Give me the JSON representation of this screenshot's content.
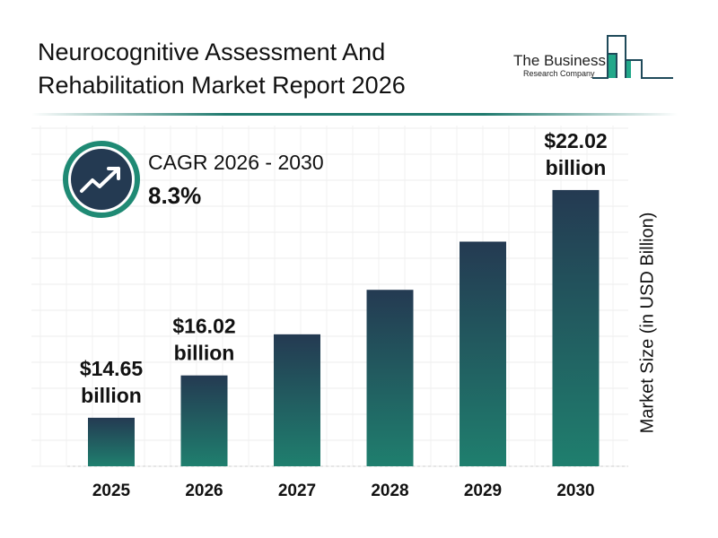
{
  "header": {
    "title_line1": "Neurocognitive Assessment And",
    "title_line2": "Rehabilitation Market Report 2026"
  },
  "logo": {
    "line1": "The Business",
    "line2": "Research Company"
  },
  "cagr": {
    "label": "CAGR 2026 - 2030",
    "value": "8.3%",
    "icon": "trending-up-icon"
  },
  "colors": {
    "bar_top": "#243a52",
    "bar_bottom": "#1f7f6e",
    "accent": "#1f8a74",
    "icon_bg": "#243a52"
  },
  "chart_data": {
    "type": "bar",
    "title": "",
    "xlabel": "",
    "ylabel": "Market Size (in USD Billion)",
    "categories": [
      "2025",
      "2026",
      "2027",
      "2028",
      "2029",
      "2030"
    ],
    "values": [
      14.65,
      16.02,
      17.35,
      18.79,
      20.35,
      22.02
    ],
    "data_labels": [
      {
        "index": 0,
        "line1": "$14.65",
        "line2": "billion"
      },
      {
        "index": 1,
        "line1": "$16.02",
        "line2": "billion"
      },
      {
        "index": 5,
        "line1": "$22.02",
        "line2": "billion"
      }
    ],
    "grid": true,
    "legend": "none"
  }
}
